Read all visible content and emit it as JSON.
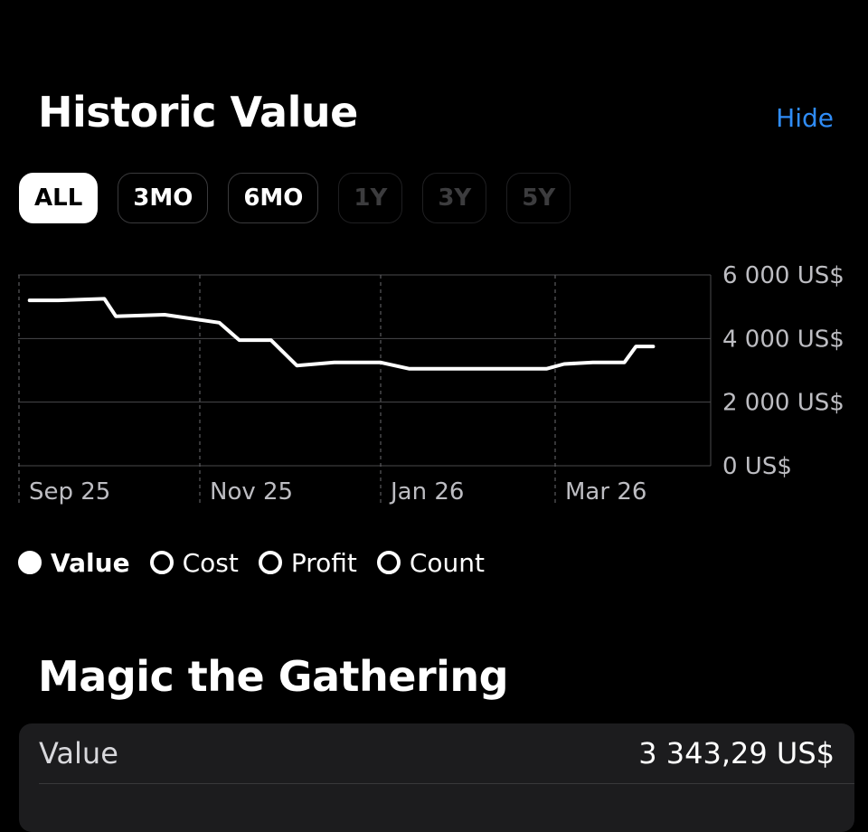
{
  "header": {
    "title": "Historic Value",
    "hide_label": "Hide"
  },
  "ranges": [
    {
      "label": "ALL",
      "state": "active"
    },
    {
      "label": "3MO",
      "state": "normal"
    },
    {
      "label": "6MO",
      "state": "normal"
    },
    {
      "label": "1Y",
      "state": "disabled"
    },
    {
      "label": "3Y",
      "state": "disabled"
    },
    {
      "label": "5Y",
      "state": "disabled"
    }
  ],
  "chart_data": {
    "type": "line",
    "x_ticks": [
      "Sep 25",
      "Nov 25",
      "Jan 26",
      "Mar 26"
    ],
    "y_ticks": [
      "6 000 US$",
      "4 000 US$",
      "2 000 US$",
      "0 US$"
    ],
    "ylim": [
      0,
      6000
    ],
    "series": [
      {
        "name": "Value",
        "color": "#ffffff",
        "points": [
          [
            "2025-09-05",
            5200
          ],
          [
            "2025-09-15",
            5200
          ],
          [
            "2025-10-01",
            5250
          ],
          [
            "2025-10-05",
            4700
          ],
          [
            "2025-10-22",
            4750
          ],
          [
            "2025-11-10",
            4500
          ],
          [
            "2025-11-17",
            3950
          ],
          [
            "2025-11-28",
            3950
          ],
          [
            "2025-12-07",
            3150
          ],
          [
            "2025-12-20",
            3250
          ],
          [
            "2026-01-05",
            3250
          ],
          [
            "2026-01-15",
            3050
          ],
          [
            "2026-02-01",
            3050
          ],
          [
            "2026-02-20",
            3050
          ],
          [
            "2026-03-04",
            3050
          ],
          [
            "2026-03-10",
            3200
          ],
          [
            "2026-03-20",
            3250
          ],
          [
            "2026-03-31",
            3250
          ],
          [
            "2026-04-04",
            3750
          ],
          [
            "2026-04-10",
            3750
          ]
        ]
      }
    ],
    "grid": true
  },
  "legend": [
    {
      "label": "Value",
      "active": true
    },
    {
      "label": "Cost",
      "active": false
    },
    {
      "label": "Profit",
      "active": false
    },
    {
      "label": "Count",
      "active": false
    }
  ],
  "section": {
    "title": "Magic the Gathering",
    "rows": [
      {
        "label": "Value",
        "value": "3 343,29 US$"
      }
    ]
  }
}
